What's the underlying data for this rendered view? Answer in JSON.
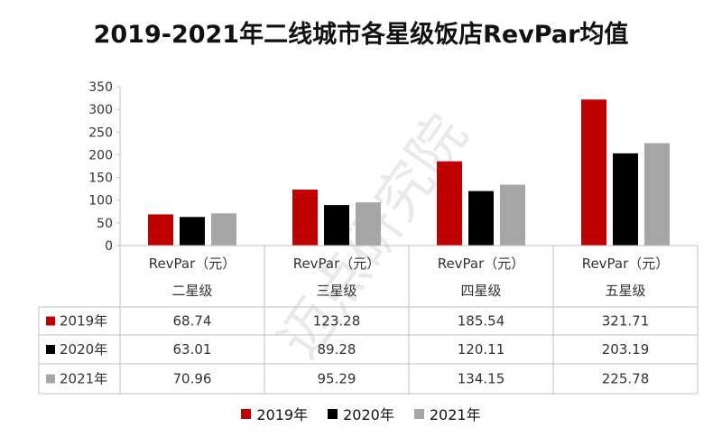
{
  "chart_data": {
    "type": "bar",
    "title": "2019-2021年二线城市各星级饭店RevPar均值",
    "ylim": [
      0,
      350
    ],
    "yticks": [
      0,
      50,
      100,
      150,
      200,
      250,
      300,
      350
    ],
    "category_header": "RevPar（元）",
    "categories": [
      "二星级",
      "三星级",
      "四星级",
      "五星级"
    ],
    "series": [
      {
        "name": "2019年",
        "color": "#c00000",
        "values": [
          68.74,
          123.28,
          185.54,
          321.71
        ],
        "labels": [
          "68.74",
          "123.28",
          "185.54",
          "321.71"
        ]
      },
      {
        "name": "2020年",
        "color": "#000000",
        "values": [
          63.01,
          89.28,
          120.11,
          203.19
        ],
        "labels": [
          "63.01",
          "89.28",
          "120.11",
          "203.19"
        ]
      },
      {
        "name": "2021年",
        "color": "#a6a6a6",
        "values": [
          70.96,
          95.29,
          134.15,
          225.78
        ],
        "labels": [
          "70.96",
          "95.29",
          "134.15",
          "225.78"
        ]
      }
    ],
    "grid": false,
    "legend_position": "bottom",
    "data_table": true
  },
  "watermark": "迈点研究院"
}
